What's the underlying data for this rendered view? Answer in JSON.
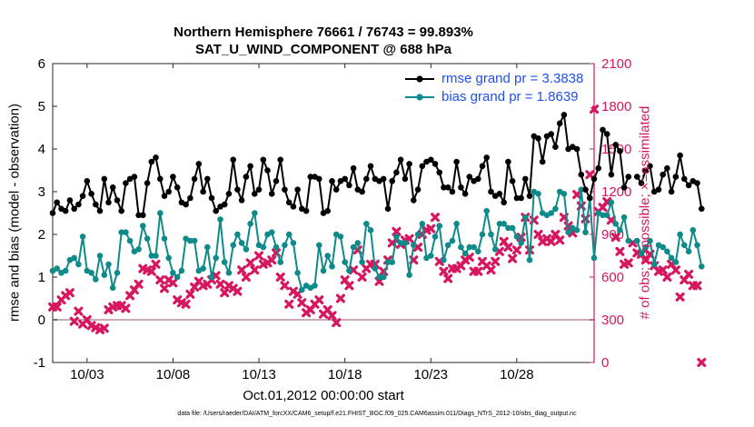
{
  "title": {
    "line1": "Northern Hemisphere 76661 / 76743 = 99.893%",
    "line2": "SAT_U_WIND_COMPONENT @ 688 hPa"
  },
  "footnote": "data file: /Users/raeder/DAI/ATM_forcXX/CAM6_setup/f.e21.FHIST_BGC.f09_025.CAM6assim.011/Diags_NTrS_2012-10/obs_diag_output.nc",
  "colors": {
    "rmse": "#000000",
    "bias": "#0f8a8a",
    "obs": "#d6165e",
    "legend_text": "#1f4ff0",
    "zero_line": "#c8aab4"
  },
  "chart_data": {
    "type": "line",
    "title": "Northern Hemisphere 76661 / 76743 = 99.893%",
    "subtitle": "SAT_U_WIND_COMPONENT @ 688 hPa",
    "xlabel": "Oct.01,2012 00:00:00 start",
    "ylabel": "rmse and bias (model - observation)",
    "y2label": "# of obs: o=possible; ×=assimilated",
    "x_tick_labels": [
      "10/03",
      "10/08",
      "10/13",
      "10/18",
      "10/23",
      "10/28"
    ],
    "x_tick_values": [
      3,
      8,
      13,
      18,
      23,
      28
    ],
    "xlim": [
      1.0,
      32.5
    ],
    "ylim": [
      -1,
      6
    ],
    "y_ticks": [
      "-1",
      "0",
      "1",
      "2",
      "3",
      "4",
      "5",
      "6"
    ],
    "y2lim": [
      0,
      2100
    ],
    "y2_ticks": [
      "0",
      "300",
      "600",
      "900",
      "1200",
      "1500",
      "1800",
      "2100"
    ],
    "grid": false,
    "legend_position": "top-right",
    "x_step_days": 0.25,
    "series": [
      {
        "name": "rmse grand pr = 3.3838",
        "axis": "left",
        "values": [
          2.5,
          2.75,
          2.6,
          2.55,
          2.8,
          2.6,
          2.7,
          2.9,
          3.25,
          2.95,
          2.7,
          2.55,
          3.3,
          2.75,
          3.1,
          2.8,
          2.55,
          3.2,
          3.3,
          3.35,
          2.45,
          2.45,
          3.2,
          3.7,
          3.8,
          3.3,
          2.9,
          3.0,
          3.35,
          3.1,
          2.75,
          2.7,
          2.85,
          3.3,
          3.65,
          3.0,
          3.3,
          2.85,
          2.55,
          2.65,
          2.7,
          2.95,
          3.75,
          3.05,
          2.8,
          3.35,
          3.6,
          2.95,
          3.05,
          3.75,
          3.5,
          2.95,
          3.25,
          3.75,
          3.05,
          2.75,
          2.65,
          3.05,
          2.6,
          2.55,
          3.35,
          3.35,
          3.3,
          2.5,
          2.55,
          3.25,
          3.05,
          3.25,
          3.3,
          3.15,
          3.55,
          3.05,
          3.0,
          3.3,
          3.6,
          3.3,
          3.25,
          3.3,
          2.6,
          3.25,
          3.45,
          3.75,
          3.3,
          3.65,
          2.8,
          3.05,
          3.6,
          3.7,
          3.75,
          3.65,
          3.45,
          3.1,
          3.1,
          3.0,
          3.7,
          3.1,
          2.95,
          3.35,
          3.25,
          3.3,
          3.6,
          3.8,
          3.0,
          2.9,
          2.95,
          2.75,
          3.7,
          3.25,
          2.85,
          2.85,
          3.3,
          2.9,
          4.3,
          4.25,
          3.7,
          4.3,
          4.35,
          4.05,
          4.6,
          4.8,
          4.0,
          4.05,
          4.0,
          3.4,
          3.05,
          2.85,
          3.3,
          3.55,
          4.45,
          4.35,
          3.4,
          4.1,
          3.95,
          3.1,
          3.35,
          null,
          3.35,
          3.2,
          3.5,
          3.6,
          3.0,
          3.05,
          3.4,
          3.55,
          3.0,
          3.35,
          3.85,
          3.3,
          3.15,
          3.25,
          3.2,
          2.6
        ]
      },
      {
        "name": "bias grand pr = 1.8639",
        "axis": "left",
        "values": [
          1.15,
          1.2,
          1.1,
          1.15,
          1.4,
          1.45,
          1.3,
          1.95,
          1.15,
          1.1,
          0.95,
          1.5,
          1.05,
          1.3,
          0.75,
          1.1,
          2.05,
          2.05,
          1.85,
          1.6,
          1.65,
          2.2,
          1.9,
          1.5,
          1.5,
          2.5,
          1.9,
          1.45,
          1.1,
          1.0,
          1.15,
          1.9,
          1.85,
          1.85,
          1.15,
          1.2,
          1.7,
          1.0,
          1.45,
          2.35,
          1.35,
          1.1,
          1.75,
          2.0,
          1.8,
          1.65,
          2.25,
          2.5,
          1.75,
          1.7,
          2.0,
          2.05,
          1.7,
          1.35,
          1.75,
          2.0,
          1.8,
          1.1,
          0.7,
          0.8,
          0.75,
          0.8,
          1.75,
          1.15,
          1.5,
          1.25,
          2.0,
          1.95,
          1.35,
          1.15,
          1.7,
          1.8,
          1.35,
          2.25,
          2.1,
          1.2,
          1.0,
          1.0,
          1.35,
          1.35,
          1.95,
          1.8,
          1.8,
          1.05,
          1.75,
          2.0,
          2.25,
          1.45,
          1.5,
          1.95,
          2.2,
          1.4,
          1.75,
          1.85,
          2.25,
          1.7,
          1.55,
          1.7,
          1.7,
          1.6,
          2.0,
          2.55,
          2.0,
          1.65,
          2.25,
          2.25,
          2.15,
          2.15,
          1.95,
          1.8,
          2.4,
          1.4,
          3.0,
          2.95,
          2.5,
          2.45,
          2.5,
          2.6,
          3.0,
          2.95,
          2.05,
          2.15,
          2.1,
          3.05,
          2.05,
          2.85,
          1.45,
          2.5,
          2.45,
          2.45,
          2.75,
          2.25,
          2.1,
          2.4,
          1.85,
          null,
          1.85,
          1.55,
          1.7,
          1.85,
          1.3,
          1.75,
          1.7,
          1.6,
          1.45,
          1.35,
          2.0,
          1.75,
          1.6,
          2.1,
          1.75,
          1.25
        ]
      },
      {
        "name": "# of obs: o=possible; ×=assimilated",
        "axis": "right",
        "values": [
          390,
          390,
          440,
          470,
          490,
          290,
          360,
          270,
          300,
          260,
          245,
          230,
          240,
          370,
          390,
          400,
          400,
          380,
          470,
          510,
          550,
          660,
          650,
          640,
          690,
          580,
          520,
          580,
          560,
          440,
          420,
          410,
          480,
          530,
          570,
          540,
          550,
          580,
          610,
          550,
          490,
          540,
          520,
          500,
          650,
          600,
          700,
          650,
          750,
          690,
          700,
          720,
          770,
          600,
          540,
          410,
          500,
          480,
          420,
          350,
          370,
          410,
          440,
          340,
          370,
          330,
          280,
          450,
          580,
          540,
          650,
          790,
          600,
          660,
          690,
          690,
          570,
          640,
          720,
          840,
          920,
          830,
          860,
          870,
          720,
          810,
          900,
          930,
          940,
          1020,
          710,
          640,
          590,
          660,
          660,
          680,
          720,
          740,
          640,
          640,
          710,
          680,
          650,
          710,
          780,
          850,
          810,
          730,
          790,
          880,
          1020,
          790,
          1000,
          900,
          850,
          870,
          850,
          900,
          860,
          1020,
          960,
          910,
          1180,
          1100,
          1010,
          1320,
          1780,
          1060,
          1090,
          1130,
          1000,
          880,
          780,
          690,
          700,
          840,
          770,
          760,
          720,
          760,
          680,
          640,
          650,
          600,
          690,
          650,
          460,
          580,
          620,
          540,
          540,
          0
        ]
      }
    ]
  }
}
